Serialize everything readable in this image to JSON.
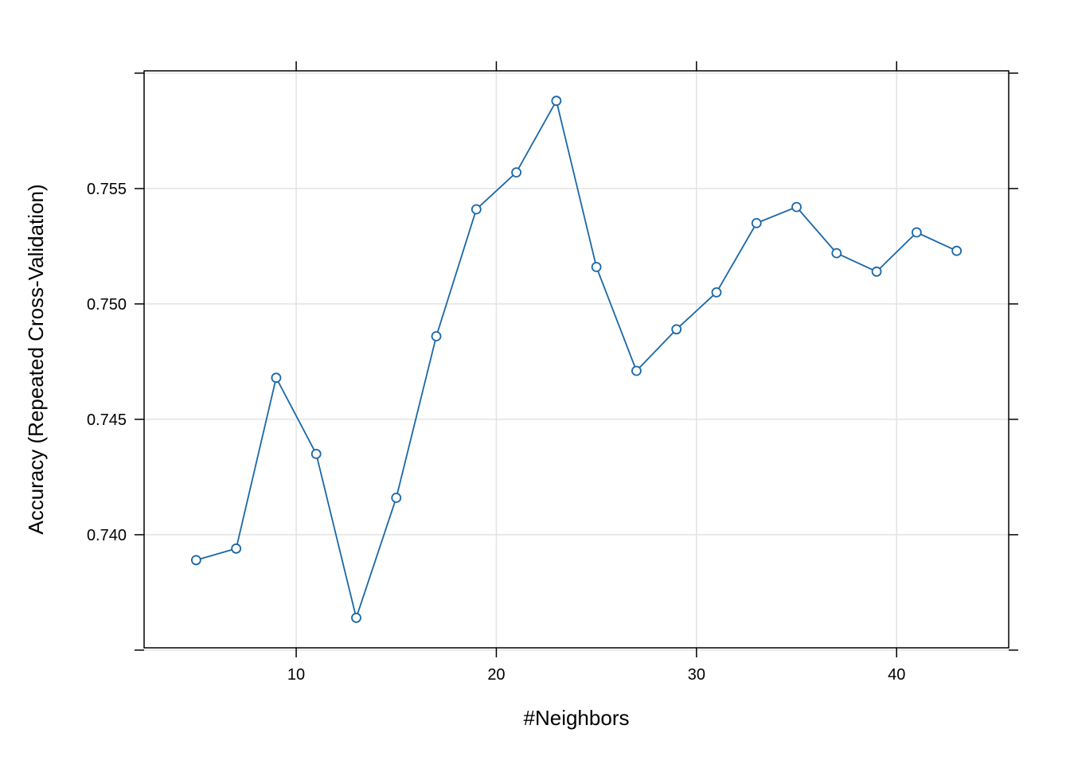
{
  "chart_data": {
    "type": "line",
    "title": "",
    "xlabel": "#Neighbors",
    "ylabel": "Accuracy (Repeated Cross-Validation)",
    "xlim": [
      2.4,
      45.6
    ],
    "ylim": [
      0.7351,
      0.7601
    ],
    "xticks": [
      10,
      20,
      30,
      40
    ],
    "yticks": [
      0.74,
      0.745,
      0.75,
      0.755
    ],
    "ytick_labels": [
      "0.740",
      "0.745",
      "0.750",
      "0.755"
    ],
    "grid": true,
    "series_color": "#1a67a7",
    "grid_color": "#e3e3e3",
    "series": [
      {
        "x": [
          5,
          7,
          9,
          11,
          13,
          15,
          17,
          19,
          21,
          23,
          25,
          27,
          29,
          31,
          33,
          35,
          37,
          39,
          41,
          43
        ],
        "values": [
          0.7389,
          0.7394,
          0.7468,
          0.7435,
          0.7364,
          0.7416,
          0.7486,
          0.7541,
          0.7557,
          0.7588,
          0.7516,
          0.7471,
          0.7489,
          0.7505,
          0.7535,
          0.7542,
          0.7522,
          0.7514,
          0.7531,
          0.7523
        ]
      }
    ]
  }
}
